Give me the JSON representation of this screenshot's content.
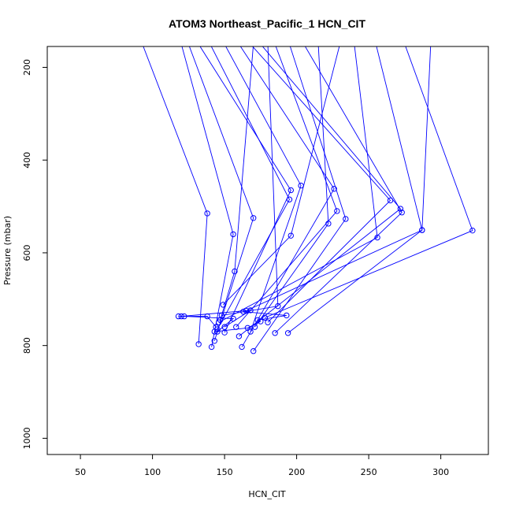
{
  "chart_data": {
    "type": "line",
    "title": "ATOM3 Northeast_Pacific_1 HCN_CIT",
    "xlabel": "HCN_CIT",
    "ylabel": "Pressure (mbar)",
    "xlim": [
      27,
      333
    ],
    "ylim": [
      1035,
      155
    ],
    "y_inverted": true,
    "xticks": [
      50,
      100,
      150,
      200,
      250,
      300
    ],
    "yticks": [
      200,
      400,
      600,
      800,
      1000
    ],
    "grid": false,
    "color": "#0000ff",
    "marker": "open-circle",
    "series": [
      {
        "x": [
          93,
          138,
          132
        ],
        "y": [
          150,
          515,
          797
        ]
      },
      {
        "x": [
          120,
          156,
          141
        ],
        "y": [
          150,
          560,
          803
        ]
      },
      {
        "x": [
          125,
          170,
          143
        ],
        "y": [
          150,
          525,
          790
        ]
      },
      {
        "x": [
          132,
          196,
          150
        ],
        "y": [
          150,
          465,
          772
        ]
      },
      {
        "x": [
          140,
          195,
          145
        ],
        "y": [
          150,
          485,
          765
        ]
      },
      {
        "x": [
          150,
          203,
          168
        ],
        "y": [
          150,
          455,
          770
        ]
      },
      {
        "x": [
          160,
          226,
          162
        ],
        "y": [
          150,
          462,
          803
        ]
      },
      {
        "x": [
          168,
          265,
          180
        ],
        "y": [
          150,
          487,
          750
        ]
      },
      {
        "x": [
          175,
          272,
          160
        ],
        "y": [
          150,
          505,
          780
        ]
      },
      {
        "x": [
          185,
          228,
          158
        ],
        "y": [
          150,
          510,
          760
        ]
      },
      {
        "x": [
          195,
          234,
          170
        ],
        "y": [
          150,
          527,
          812
        ]
      },
      {
        "x": [
          205,
          273,
          185
        ],
        "y": [
          150,
          513,
          773
        ]
      },
      {
        "x": [
          215,
          222,
          171
        ],
        "y": [
          150,
          537,
          760
        ]
      },
      {
        "x": [
          230,
          196,
          149
        ],
        "y": [
          150,
          563,
          712
        ]
      },
      {
        "x": [
          240,
          256,
          146
        ],
        "y": [
          150,
          567,
          750
        ]
      },
      {
        "x": [
          255,
          287,
          165
        ],
        "y": [
          150,
          551,
          725
        ]
      },
      {
        "x": [
          275,
          322,
          178
        ],
        "y": [
          150,
          552,
          740
        ]
      },
      {
        "x": [
          293,
          287,
          194
        ],
        "y": [
          150,
          551,
          773
        ]
      },
      {
        "x": [
          170,
          157,
          147
        ],
        "y": [
          150,
          640,
          745
        ]
      },
      {
        "x": [
          180,
          187,
          148
        ],
        "y": [
          150,
          715,
          735
        ]
      },
      {
        "x": [
          118,
          138,
          144
        ],
        "y": [
          737,
          737,
          760
        ]
      },
      {
        "x": [
          120,
          168,
          150
        ],
        "y": [
          737,
          724,
          760
        ]
      },
      {
        "x": [
          122,
          156,
          145
        ],
        "y": [
          737,
          742,
          770
        ]
      },
      {
        "x": [
          163,
          193,
          173
        ],
        "y": [
          727,
          735,
          745
        ]
      },
      {
        "x": [
          143,
          166,
          175
        ],
        "y": [
          770,
          762,
          748
        ]
      }
    ]
  }
}
